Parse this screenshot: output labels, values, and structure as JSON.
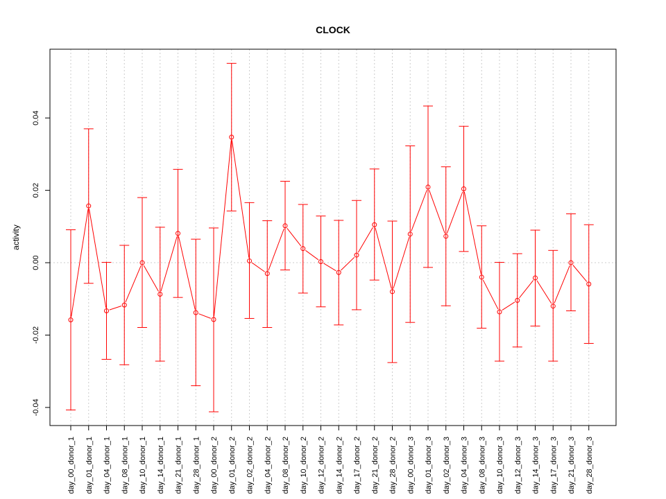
{
  "chart_data": {
    "type": "line",
    "title": "CLOCK",
    "xlabel": "",
    "ylabel": "activity",
    "ylim": [
      -0.045,
      0.059
    ],
    "yticks": [
      -0.04,
      -0.02,
      0.0,
      0.02,
      0.04
    ],
    "ytick_labels": [
      "-0.04",
      "-0.02",
      "0.00",
      "0.02",
      "0.04"
    ],
    "grid": true,
    "color": "#ff0000",
    "grid_color": "#cccccc",
    "categories": [
      "day_00_donor_1",
      "day_01_donor_1",
      "day_04_donor_1",
      "day_08_donor_1",
      "day_10_donor_1",
      "day_14_donor_1",
      "day_21_donor_1",
      "day_28_donor_1",
      "day_00_donor_2",
      "day_01_donor_2",
      "day_02_donor_2",
      "day_04_donor_2",
      "day_08_donor_2",
      "day_10_donor_2",
      "day_12_donor_2",
      "day_14_donor_2",
      "day_17_donor_2",
      "day_21_donor_2",
      "day_28_donor_2",
      "day_00_donor_3",
      "day_01_donor_3",
      "day_02_donor_3",
      "day_04_donor_3",
      "day_08_donor_3",
      "day_10_donor_3",
      "day_12_donor_3",
      "day_14_donor_3",
      "day_17_donor_3",
      "day_21_donor_3",
      "day_28_donor_3"
    ],
    "values": [
      -0.0158,
      0.0157,
      -0.0133,
      -0.0117,
      0.0,
      -0.0087,
      0.0081,
      -0.0138,
      -0.0157,
      0.0347,
      0.0005,
      -0.003,
      0.0102,
      0.0039,
      0.0003,
      -0.0027,
      0.0021,
      0.0105,
      -0.008,
      0.0079,
      0.0209,
      0.0073,
      0.0204,
      -0.004,
      -0.0136,
      -0.0104,
      -0.0042,
      -0.012,
      0.0,
      -0.0059
    ],
    "upper": [
      0.0091,
      0.037,
      0.0001,
      0.0048,
      0.018,
      0.0098,
      0.0258,
      0.0065,
      0.0096,
      0.0551,
      0.0166,
      0.0116,
      0.0225,
      0.0161,
      0.0129,
      0.0117,
      0.0172,
      0.0259,
      0.0115,
      0.0323,
      0.0433,
      0.0265,
      0.0377,
      0.0102,
      0.0001,
      0.0025,
      0.009,
      0.0034,
      0.0135,
      0.0105
    ],
    "lower": [
      -0.0407,
      -0.0057,
      -0.0267,
      -0.0282,
      -0.0179,
      -0.0272,
      -0.0096,
      -0.034,
      -0.0412,
      0.0143,
      -0.0154,
      -0.0179,
      -0.002,
      -0.0084,
      -0.0122,
      -0.0172,
      -0.013,
      -0.0048,
      -0.0276,
      -0.0165,
      -0.0013,
      -0.0119,
      0.0031,
      -0.0181,
      -0.0272,
      -0.0233,
      -0.0175,
      -0.0272,
      -0.0133,
      -0.0223
    ]
  }
}
